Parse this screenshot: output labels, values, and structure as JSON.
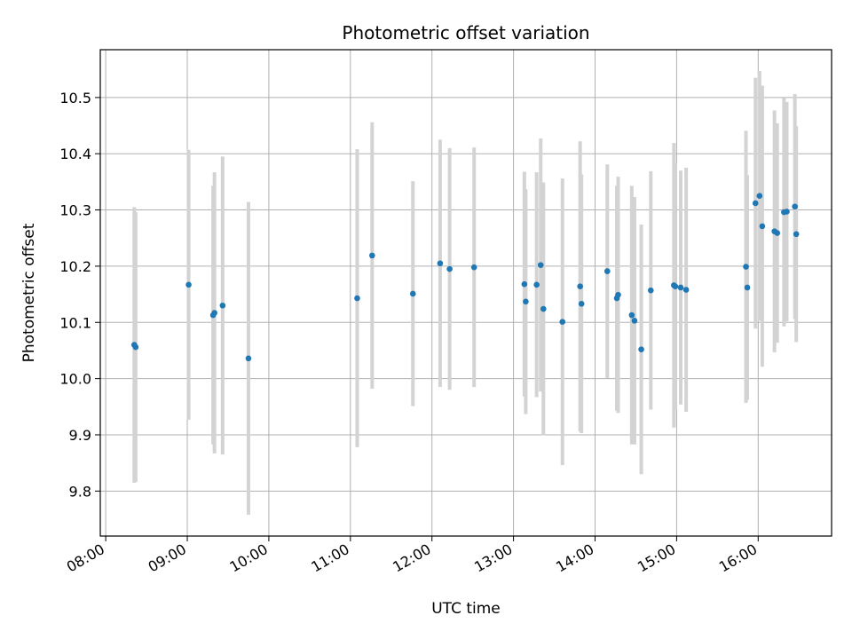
{
  "chart_data": {
    "type": "scatter",
    "title": "Photometric offset variation",
    "xlabel": "UTC time",
    "ylabel": "Photometric offset",
    "x_ticks": [
      "08:00",
      "09:00",
      "10:00",
      "11:00",
      "12:00",
      "13:00",
      "14:00",
      "15:00",
      "16:00"
    ],
    "y_ticks": [
      "9.8",
      "9.9",
      "10.0",
      "10.1",
      "10.2",
      "10.3",
      "10.4",
      "10.5"
    ],
    "xlim": [
      "07:56",
      "16:54"
    ],
    "ylim": [
      9.72,
      10.585
    ],
    "grid": true,
    "colors": {
      "point": "#1f77b4",
      "errorbar": "#d3d3d3",
      "grid": "#b0b0b0"
    },
    "series": [
      {
        "x": [
          "08:21",
          "08:22",
          "09:01",
          "09:19",
          "09:20",
          "09:26",
          "09:45",
          "11:05",
          "11:16",
          "11:46",
          "12:06",
          "12:13",
          "12:31",
          "13:08",
          "13:09",
          "13:17",
          "13:20",
          "13:22",
          "13:36",
          "13:49",
          "13:50",
          "14:09",
          "14:16",
          "14:17",
          "14:27",
          "14:29",
          "14:34",
          "14:41",
          "14:58",
          "14:59",
          "15:03",
          "15:07",
          "15:51",
          "15:52",
          "15:58",
          "16:01",
          "16:03",
          "16:12",
          "16:14",
          "16:19",
          "16:21",
          "16:27",
          "16:28"
        ],
        "y": [
          10.06,
          10.056,
          10.167,
          10.113,
          10.117,
          10.13,
          10.036,
          10.143,
          10.219,
          10.151,
          10.205,
          10.195,
          10.198,
          10.168,
          10.137,
          10.167,
          10.202,
          10.124,
          10.101,
          10.164,
          10.133,
          10.191,
          10.143,
          10.149,
          10.113,
          10.103,
          10.052,
          10.157,
          10.166,
          10.164,
          10.162,
          10.158,
          10.199,
          10.162,
          10.312,
          10.325,
          10.271,
          10.262,
          10.259,
          10.296,
          10.297,
          10.306,
          10.257
        ],
        "yerr": [
          0.245,
          0.24,
          0.24,
          0.23,
          0.25,
          0.265,
          0.278,
          0.265,
          0.237,
          0.2,
          0.22,
          0.215,
          0.213,
          0.2,
          0.2,
          0.2,
          0.225,
          0.225,
          0.255,
          0.258,
          0.23,
          0.19,
          0.2,
          0.21,
          0.23,
          0.22,
          0.222,
          0.212,
          0.253,
          0.22,
          0.208,
          0.217,
          0.242,
          0.2,
          0.223,
          0.222,
          0.25,
          0.215,
          0.195,
          0.203,
          0.195,
          0.2,
          0.192
        ]
      }
    ]
  }
}
